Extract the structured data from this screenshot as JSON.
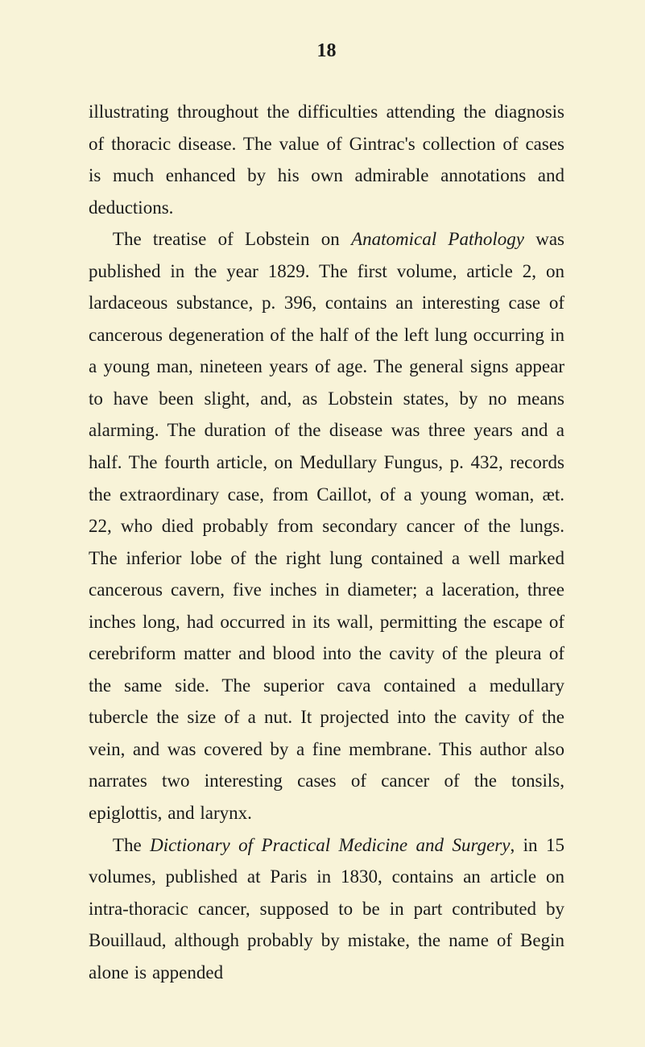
{
  "page_number": "18",
  "paragraphs": [
    {
      "segments": [
        {
          "text": "illustrating throughout the difficulties attending the diagnosis of thoracic disease. The value of Gintrac's collection of cases is much enhanced by his own admirable annotations and deductions.",
          "italic": false
        }
      ]
    },
    {
      "segments": [
        {
          "text": "The treatise of Lobstein on ",
          "italic": false
        },
        {
          "text": "Anatomical Pathology",
          "italic": true
        },
        {
          "text": " was published in the year 1829. The first volume, article 2, on lardaceous substance, p. 396, contains an interesting case of cancerous degeneration of the half of the left lung occurring in a young man, nineteen years of age. The general signs appear to have been slight, and, as Lobstein states, by no means alarming. The duration of the disease was three years and a half. The fourth article, on Medullary Fungus, p. 432, records the extraordinary case, from Caillot, of a young woman, æt. 22, who died probably from secondary cancer of the lungs. The inferior lobe of the right lung contained a well marked cancerous cavern, five inches in diameter; a laceration, three inches long, had occurred in its wall, permitting the escape of cerebriform matter and blood into the cavity of the pleura of the same side. The superior cava contained a medullary tubercle the size of a nut. It projected into the cavity of the vein, and was covered by a fine membrane. This author also narrates two interesting cases of cancer of the tonsils, epiglottis, and larynx.",
          "italic": false
        }
      ]
    },
    {
      "segments": [
        {
          "text": "The ",
          "italic": false
        },
        {
          "text": "Dictionary of Practical Medicine and Surgery",
          "italic": true
        },
        {
          "text": ", in 15 volumes, published at Paris in 1830, contains an article on intra-thoracic cancer, supposed to be in part contributed by Bouillaud, although probably by mistake, the name of Begin alone is appended",
          "italic": false
        }
      ]
    }
  ],
  "colors": {
    "background": "#f8f3d8",
    "text": "#1a1a1a"
  },
  "typography": {
    "body_fontsize": 23,
    "line_height": 1.72,
    "page_number_fontsize": 24
  }
}
